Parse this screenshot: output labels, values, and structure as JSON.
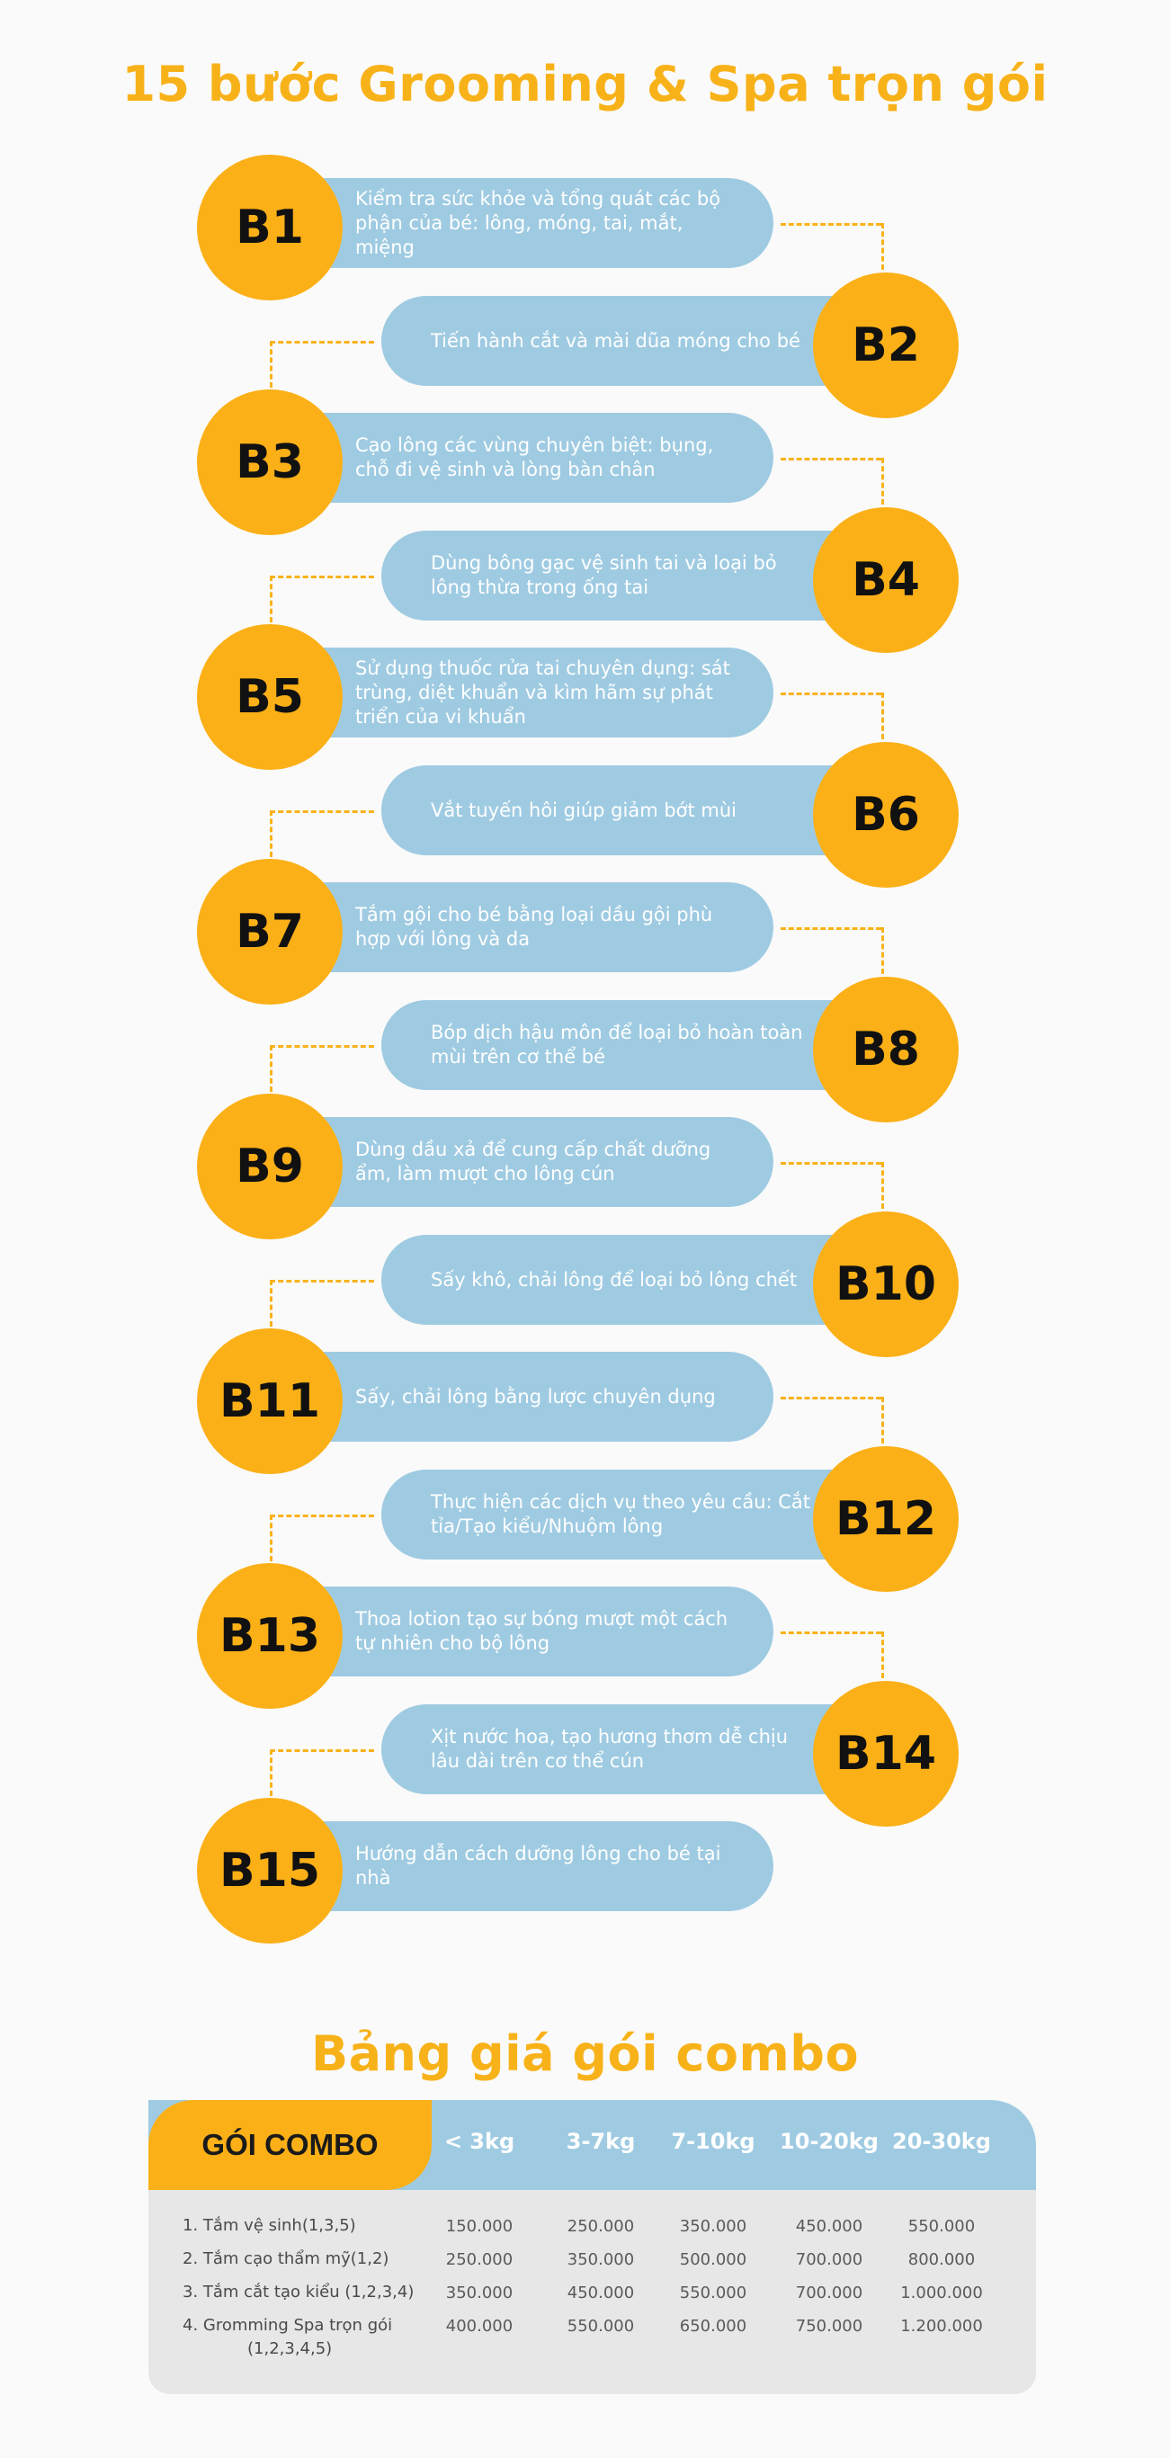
{
  "main_title": "15 bước Grooming & Spa trọn gói",
  "steps": [
    {
      "badge": "B1",
      "text": "Kiểm tra sức khỏe và tổng quát các bộ phận của bé: lông, móng, tai, mắt, miệng"
    },
    {
      "badge": "B2",
      "text": "Tiến hành cắt và mài dũa móng cho bé"
    },
    {
      "badge": "B3",
      "text": "Cạo lông các vùng chuyên biệt: bụng, chỗ đi vệ sinh và lòng bàn chân"
    },
    {
      "badge": "B4",
      "text": "Dùng bông gạc vệ sinh tai và loại bỏ lông thừa trong ống tai"
    },
    {
      "badge": "B5",
      "text": "Sử dụng thuốc rửa tai chuyên dụng: sát trùng, diệt khuẩn và kìm hãm sự phát triển của vi khuẩn"
    },
    {
      "badge": "B6",
      "text": "Vắt tuyến hôi giúp giảm bớt mùi"
    },
    {
      "badge": "B7",
      "text": "Tắm gội cho bé bằng loại dầu gội phù hợp với lông và da"
    },
    {
      "badge": "B8",
      "text": "Bóp dịch hậu môn để loại bỏ hoàn toàn mùi trên cơ thể bé"
    },
    {
      "badge": "B9",
      "text": "Dùng dầu xả để cung cấp chất dưỡng ẩm, làm mượt cho lông cún"
    },
    {
      "badge": "B10",
      "text": "Sấy khô, chải lông để loại bỏ lông chết"
    },
    {
      "badge": "B11",
      "text": "Sấy, chải lông bằng lược chuyên dụng"
    },
    {
      "badge": "B12",
      "text": "Thực hiện các dịch vụ theo yêu cầu: Cắt tỉa/Tạo kiểu/Nhuộm lông"
    },
    {
      "badge": "B13",
      "text": "Thoa lotion tạo sự bóng mượt một cách tự nhiên cho bộ lông"
    },
    {
      "badge": "B14",
      "text": "Xịt nước hoa, tạo hương thơm dễ chịu lâu dài trên cơ thể cún"
    },
    {
      "badge": "B15",
      "text": "Hướng dẫn cách dưỡng lông cho bé tại nhà"
    }
  ],
  "combo_title": "Bảng giá gói combo",
  "table": {
    "label": "GÓI COMBO",
    "columns": [
      "< 3kg",
      "3-7kg",
      "7-10kg",
      "10-20kg",
      "20-30kg"
    ],
    "rows": [
      {
        "name": "1. Tắm vệ sinh(1,3,5)",
        "prices": [
          "150.000",
          "250.000",
          "350.000",
          "450.000",
          "550.000"
        ]
      },
      {
        "name": "2. Tắm cạo thẩm mỹ(1,2)",
        "prices": [
          "250.000",
          "350.000",
          "500.000",
          "700.000",
          "800.000"
        ]
      },
      {
        "name": "3. Tắm cắt tạo kiểu (1,2,3,4)",
        "prices": [
          "350.000",
          "450.000",
          "550.000",
          "700.000",
          "1.000.000"
        ]
      },
      {
        "name": "4. Gromming Spa trọn gói",
        "name_line2": "(1,2,3,4,5)",
        "prices": [
          "400.000",
          "550.000",
          "650.000",
          "750.000",
          "1.200.000"
        ]
      }
    ]
  },
  "colors": {
    "accent": "#fbb017",
    "pill": "#9fcbe2",
    "table_body": "#e7e7e8"
  }
}
